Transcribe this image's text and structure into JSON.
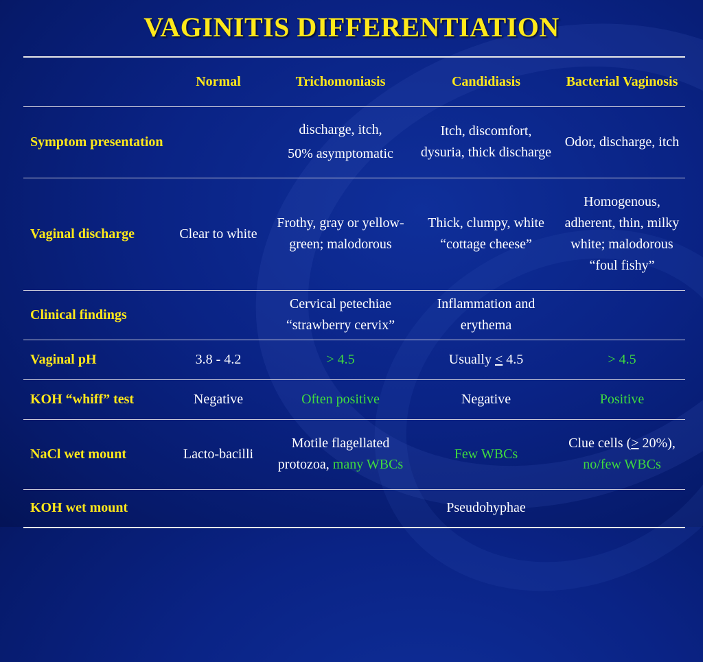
{
  "title": "VAGINITIS DIFFERENTIATION",
  "columns": [
    "",
    "Normal",
    "Trichomoniasis",
    "Candidiasis",
    "Bacterial Vaginosis"
  ],
  "rows": [
    {
      "label": "Symptom presentation",
      "normal": "",
      "tricho": [
        "discharge, itch,",
        "50% asymptomatic"
      ],
      "candida": "Itch, discomfort, dysuria, thick discharge",
      "bv": "Odor, discharge, itch"
    },
    {
      "label": "Vaginal discharge",
      "normal": "Clear to white",
      "tricho": "Frothy, gray or yellow-green; malodorous",
      "candida": "Thick, clumpy, white “cottage cheese”",
      "bv": "Homogenous, adherent, thin, milky white; malodorous “foul fishy”"
    },
    {
      "label": "Clinical findings",
      "normal": "",
      "tricho": "Cervical petechiae “strawberry cervix”",
      "candida": "Inflammation and erythema",
      "bv": ""
    },
    {
      "label": "Vaginal pH",
      "normal": "3.8 - 4.2",
      "tricho": "> 4.5",
      "candida_prefix": "Usually",
      "candida_symbol": "<",
      "candida_value": "4.5",
      "bv": "> 4.5"
    },
    {
      "label": "KOH “whiff” test",
      "normal": "Negative",
      "tricho": "Often positive",
      "candida": "Negative",
      "bv": "Positive"
    },
    {
      "label": "NaCl wet mount",
      "normal": "Lacto-bacilli",
      "tricho_text": "Motile flagellated protozoa,",
      "tricho_green": "many WBCs",
      "candida": "Few WBCs",
      "bv_text_a": "Clue cells (",
      "bv_symbol": ">",
      "bv_text_b": " 20%),",
      "bv_green": "no/few WBCs"
    },
    {
      "label": "KOH wet mount",
      "normal": "",
      "tricho": "",
      "candida": "Pseudohyphae",
      "bv": ""
    }
  ],
  "colors": {
    "background": "#0a2385",
    "title": "#ffe81a",
    "row_label": "#ffe81a",
    "highlight_green": "#3fdb3f",
    "text": "#ffffff"
  }
}
